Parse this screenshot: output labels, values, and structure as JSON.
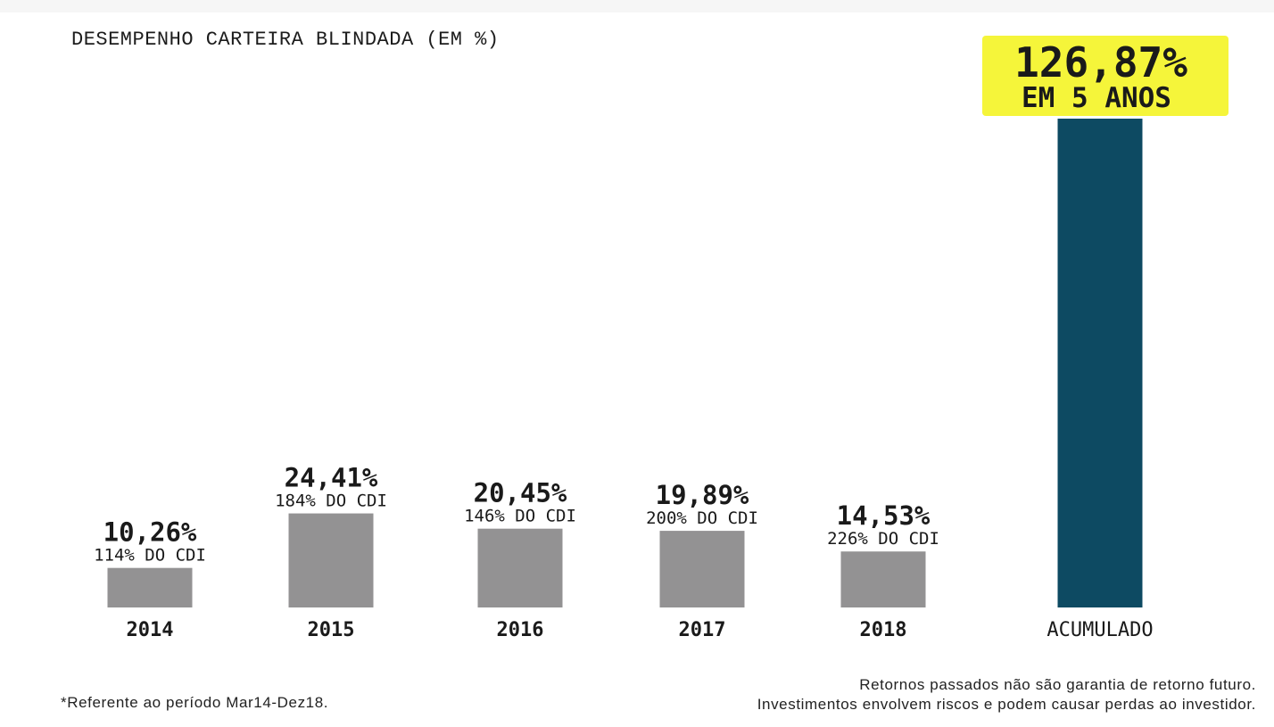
{
  "chart_data": {
    "type": "bar",
    "title": "DESEMPENHO CARTEIRA BLINDADA (EM %)",
    "categories": [
      "2014",
      "2015",
      "2016",
      "2017",
      "2018",
      "ACUMULADO"
    ],
    "values": [
      10.26,
      24.41,
      20.45,
      19.89,
      14.53,
      126.87
    ],
    "value_labels": [
      "10,26%",
      "24,41%",
      "20,45%",
      "19,89%",
      "14,53%",
      "126,87%"
    ],
    "cdi_labels": [
      "114% DO CDI",
      "184% DO CDI",
      "146% DO CDI",
      "200% DO CDI",
      "226% DO CDI",
      ""
    ],
    "highlight_label_line2": "EM 5 ANOS",
    "ylim": [
      0,
      126.87
    ],
    "grid": false,
    "colors": {
      "annual_bar": "#939293",
      "accumulated_bar": "#0d4a62",
      "highlight": "#f5f53a",
      "text": "#1a1a1a"
    }
  },
  "footnote": "*Referente ao período Mar14-Dez18.",
  "disclaimer": {
    "line1": "Retornos passados não são garantia de retorno futuro.",
    "line2": "Investimentos envolvem riscos e podem causar perdas ao investidor."
  }
}
